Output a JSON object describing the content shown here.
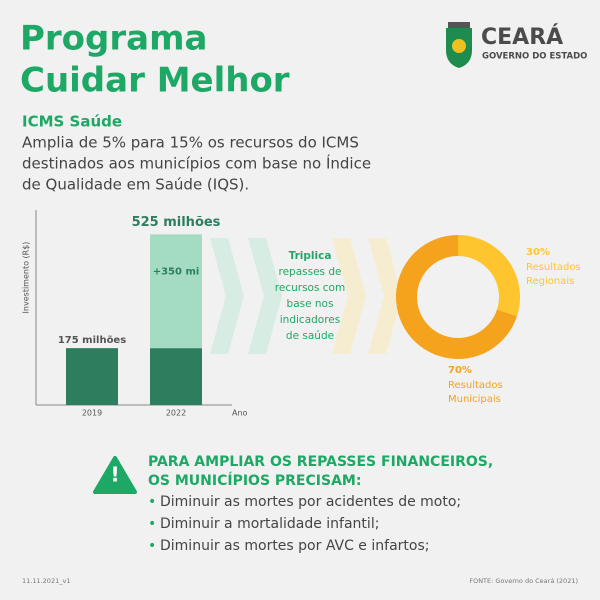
{
  "header": {
    "title_lines": [
      "Programa",
      "Cuidar Melhor"
    ],
    "logo_name": "CEARÁ",
    "logo_sub": "GOVERNO DO ESTADO"
  },
  "intro": {
    "heading": "ICMS Saúde",
    "lines": [
      "Amplia de 5% para 15% os recursos do ICMS",
      "destinados aos municípios com base no Índice",
      "de Qualidade em Saúde (IQS)."
    ]
  },
  "chart_data": [
    {
      "type": "bar",
      "ylabel": "Investimento (R$)",
      "xlabel": "Ano",
      "categories": [
        "2019",
        "2022"
      ],
      "ylim": [
        0,
        600
      ],
      "series": [
        {
          "color": "#2e7d5e",
          "values": [
            175,
            175
          ],
          "value_labels": [
            "175 milhões",
            null
          ]
        },
        {
          "color": "#a3dcc3",
          "values": [
            null,
            350
          ],
          "value_labels": [
            null,
            "+350 mi"
          ]
        }
      ],
      "annotations": [
        "525 milhões"
      ]
    },
    {
      "type": "pie",
      "categories": [
        "Resultados Regionais",
        "Resultados Municipais"
      ],
      "values": [
        30,
        70
      ],
      "value_labels": [
        "30%",
        "70%"
      ],
      "colors": [
        "#ffc52e",
        "#f5a21c"
      ]
    }
  ],
  "middle": {
    "lead": "Triplica",
    "lines": [
      "repasses de",
      "recursos com",
      "base nos",
      "indicadores",
      "de saúde"
    ]
  },
  "warning": {
    "heading_lines": [
      "PARA AMPLIAR OS REPASSES FINANCEIROS,",
      "OS MUNICÍPIOS PRECISAM:"
    ],
    "items": [
      "Diminuir as mortes por acidentes de moto;",
      "Diminuir a mortalidade infantil;",
      "Diminuir as mortes por AVC e infartos;"
    ]
  },
  "footer": {
    "version": "11.11.2021_v1",
    "source": "FONTE: Governo do Ceará (2021)"
  }
}
